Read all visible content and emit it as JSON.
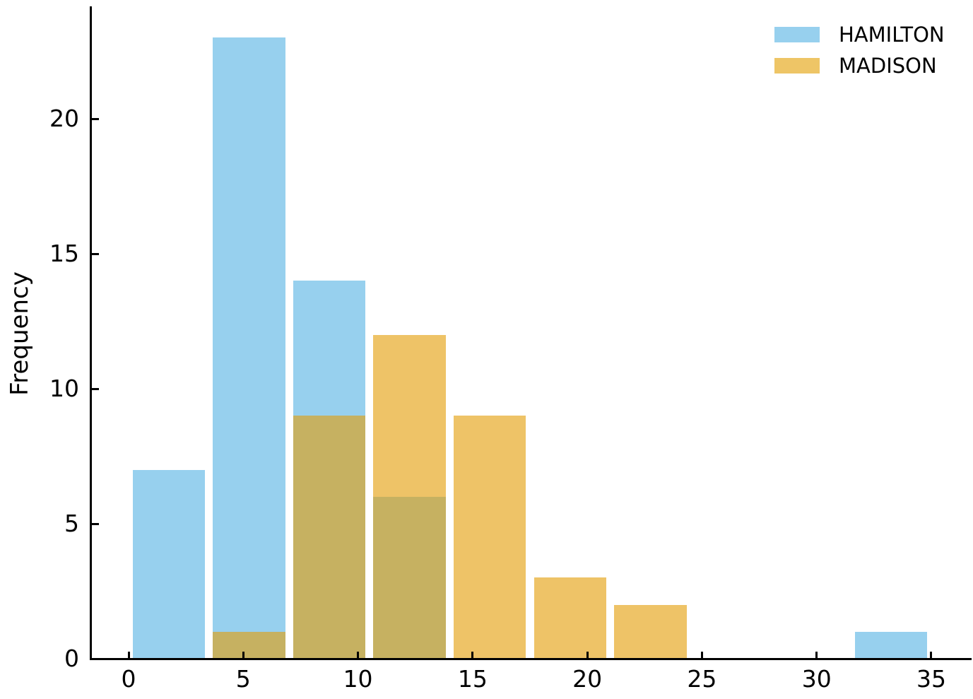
{
  "chart_data": {
    "type": "bar",
    "subtype": "overlapping-histogram",
    "title": "",
    "xlabel": "",
    "ylabel": "Frequency",
    "bin_edges": [
      0,
      3.5,
      7,
      10.5,
      14,
      17.5,
      21,
      24.5,
      28,
      31.5,
      35
    ],
    "rwidth": 0.9,
    "series": [
      {
        "name": "HAMILTON",
        "color": "#97d0ee",
        "fill": "#97d0ee",
        "counts": [
          7,
          23,
          14,
          6,
          0,
          0,
          0,
          0,
          0,
          1
        ]
      },
      {
        "name": "MADISON",
        "color": "#eec566",
        "fill": "rgba(228,158,9,0.62)",
        "counts": [
          0,
          1,
          9,
          12,
          9,
          3,
          2,
          0,
          0,
          0
        ]
      }
    ],
    "overlap_color": "#c6b161",
    "x_ticks": [
      0,
      5,
      10,
      15,
      20,
      25,
      30,
      35
    ],
    "y_ticks": [
      0,
      5,
      10,
      15,
      20
    ],
    "xlim": [
      -1.75,
      36.75
    ],
    "ylim": [
      0,
      24.15
    ],
    "grid": false,
    "tick_direction": "in",
    "legend_position": "upper right",
    "legend_frame": false,
    "axis_color": "#000000",
    "background_color": "#ffffff"
  }
}
